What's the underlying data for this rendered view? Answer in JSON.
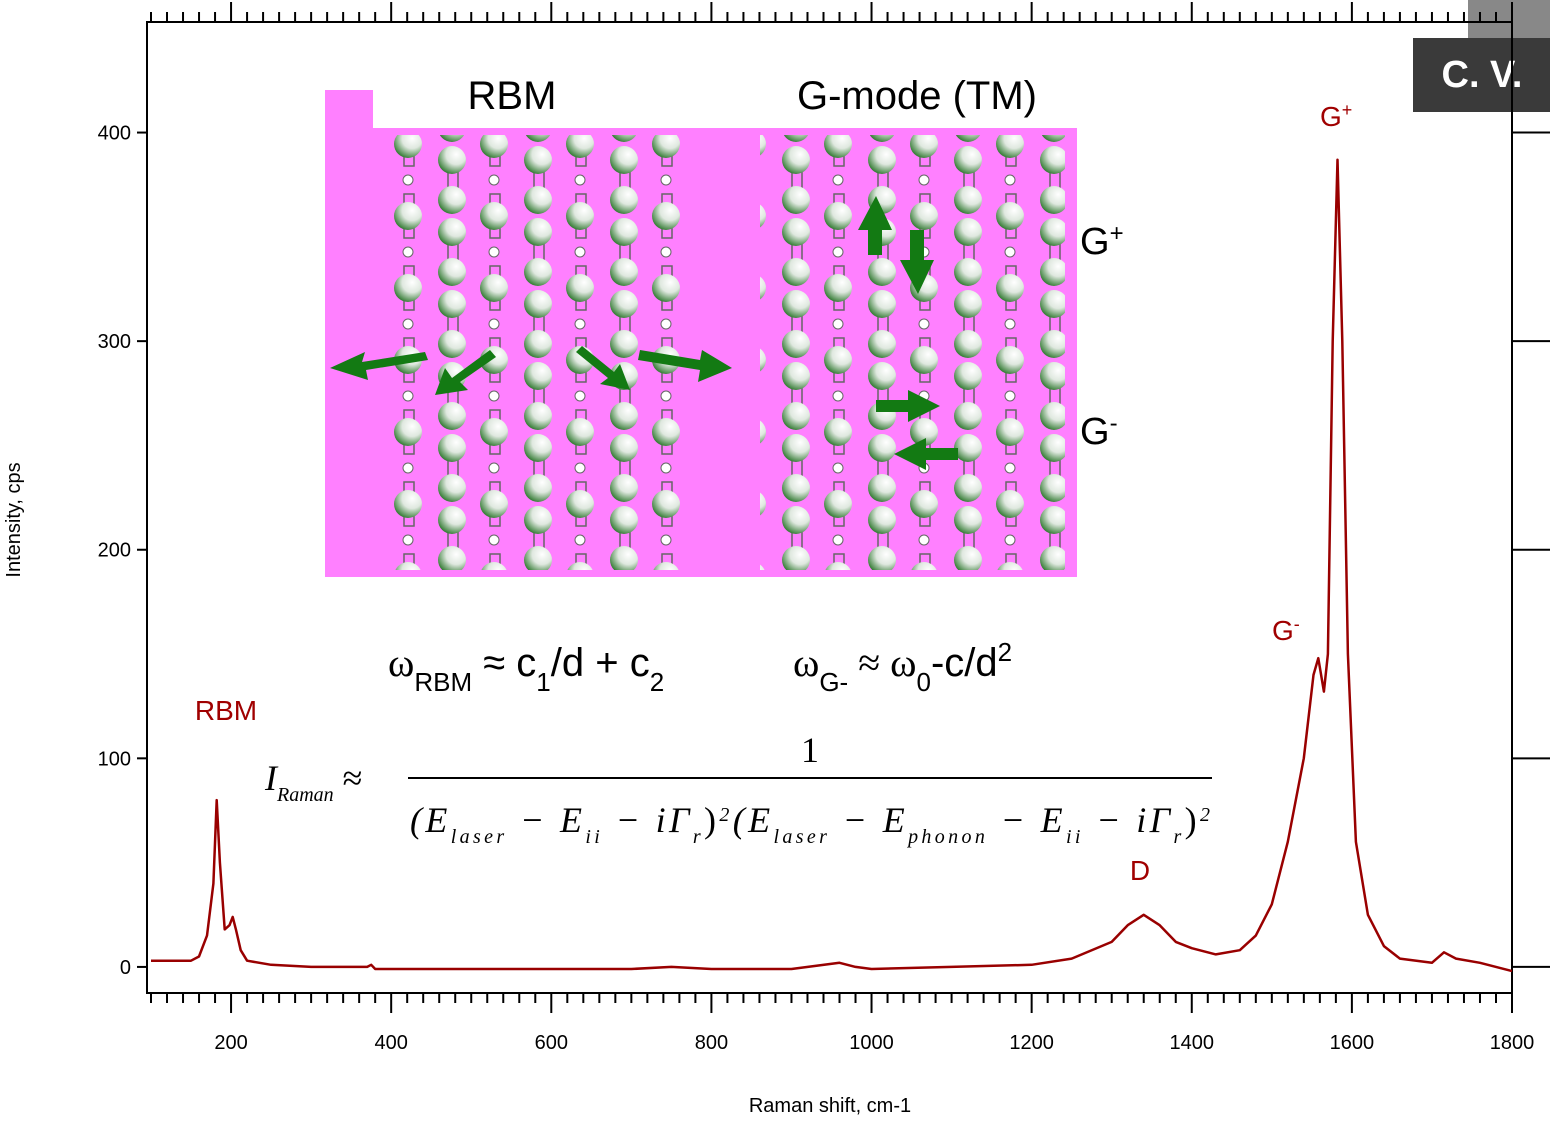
{
  "chart_data": {
    "type": "line",
    "x_label": "Raman shift, cm-1",
    "y_label": "Intensity, cps",
    "color": "#990000",
    "x": [
      100,
      150,
      160,
      170,
      178,
      182,
      186,
      192,
      198,
      202,
      206,
      212,
      220,
      250,
      300,
      370,
      375,
      380,
      500,
      700,
      750,
      800,
      900,
      960,
      980,
      1000,
      1100,
      1200,
      1250,
      1300,
      1320,
      1340,
      1360,
      1380,
      1400,
      1430,
      1460,
      1480,
      1500,
      1520,
      1540,
      1552,
      1558,
      1565,
      1570,
      1576,
      1582,
      1588,
      1595,
      1605,
      1620,
      1640,
      1660,
      1700,
      1715,
      1730,
      1760,
      1800
    ],
    "values": [
      3,
      3,
      5,
      15,
      40,
      80,
      50,
      18,
      20,
      24,
      18,
      8,
      3,
      1,
      0,
      0,
      1,
      -1,
      -1,
      -1,
      0,
      -1,
      -1,
      2,
      0,
      -1,
      0,
      1,
      4,
      12,
      20,
      25,
      20,
      12,
      9,
      6,
      8,
      15,
      30,
      60,
      100,
      140,
      148,
      132,
      150,
      300,
      387,
      300,
      150,
      60,
      25,
      10,
      4,
      2,
      7,
      4,
      2,
      -2
    ],
    "xlim": [
      95,
      1800
    ],
    "ylim": [
      -12.5,
      453
    ],
    "xticks": [
      200,
      400,
      600,
      800,
      1000,
      1200,
      1400,
      1600,
      1800
    ],
    "xminorticks": [
      100,
      120,
      140,
      160,
      180,
      220,
      240,
      260,
      280,
      300,
      320,
      340,
      360,
      380,
      420,
      440,
      460,
      480,
      500,
      520,
      540,
      560,
      580,
      620,
      640,
      660,
      680,
      700,
      720,
      740,
      760,
      780,
      820,
      840,
      860,
      880,
      900,
      920,
      940,
      960,
      980,
      1020,
      1040,
      1060,
      1080,
      1100,
      1120,
      1140,
      1160,
      1180,
      1220,
      1240,
      1260,
      1280,
      1300,
      1320,
      1340,
      1360,
      1380,
      1420,
      1440,
      1460,
      1480,
      1500,
      1520,
      1540,
      1560,
      1580,
      1620,
      1640,
      1660,
      1680,
      1700,
      1720,
      1740,
      1760,
      1780
    ],
    "yticks": [
      0,
      100,
      200,
      300,
      400
    ],
    "annotations": {
      "rbm": "RBM",
      "g_plus": [
        "G",
        "+"
      ],
      "g_minus": [
        "G",
        "-"
      ],
      "d": "D"
    },
    "inset": {
      "rbm": "RBM",
      "g_mode": "G-mode (TM)",
      "g_plus": [
        "G",
        "+"
      ],
      "g_minus": [
        "G",
        "-"
      ]
    },
    "formula_rbm": [
      "ω",
      "RBM",
      " ≈ c",
      "1",
      "/d + c",
      "2"
    ],
    "formula_g": [
      "ω",
      "G-",
      " ≈ ω",
      "0",
      "-c/d",
      "2"
    ],
    "formula_raman": {
      "lhs": [
        "I",
        "Raman",
        " ≈"
      ],
      "numerator": "1",
      "denominator": [
        "(E",
        "laser",
        " − E",
        "ii",
        " − iΓ",
        "r",
        ")",
        "2",
        "(E",
        "laser",
        " − E",
        "phonon",
        " − E",
        "ii",
        " − iΓ",
        "r",
        ")",
        "2"
      ]
    },
    "badge": "C. V."
  }
}
